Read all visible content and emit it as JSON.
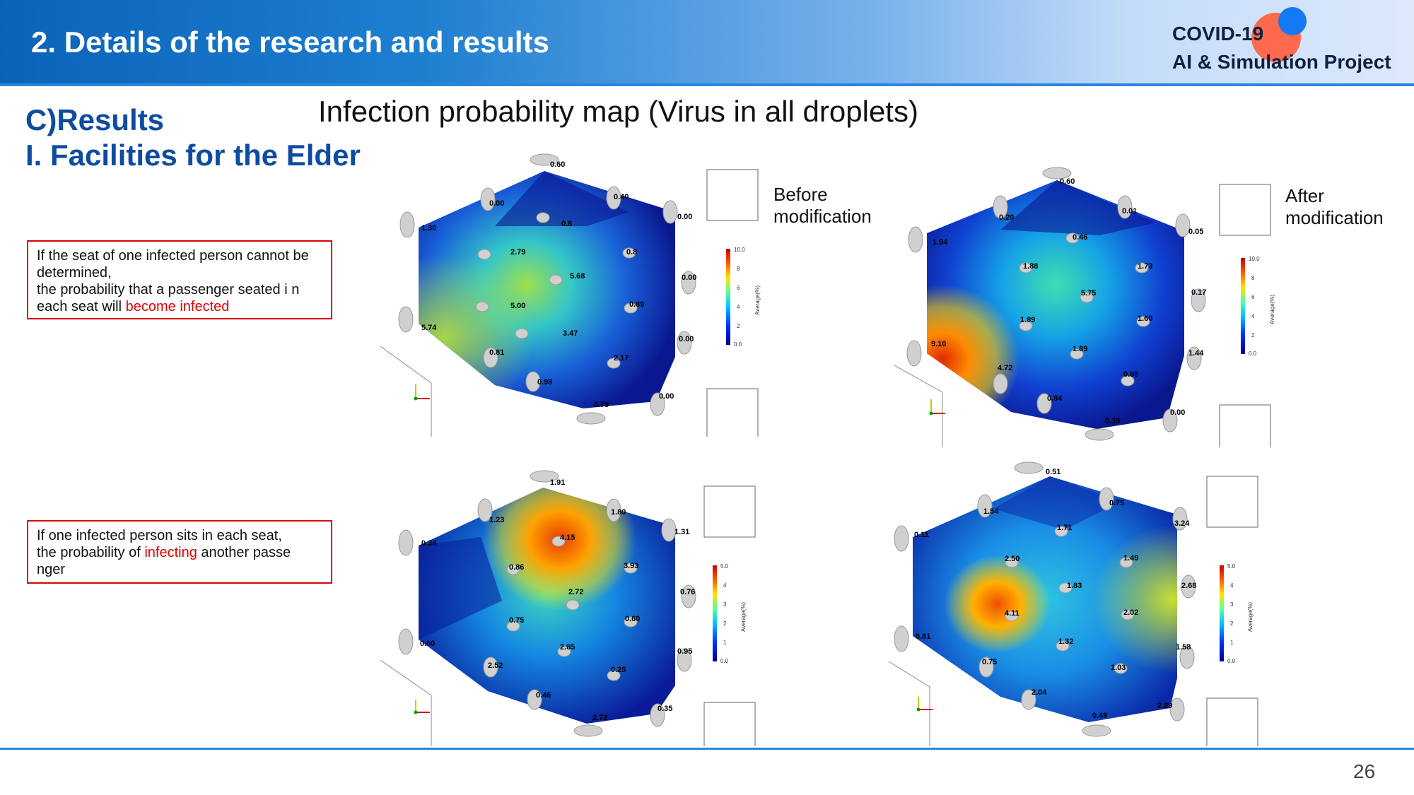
{
  "header": {
    "title": "2. Details of the research and results",
    "logo_line1": "COVID-19",
    "logo_line2": "AI & Simulation Project",
    "logo_colors": [
      "#ff6a4f",
      "#1479f5"
    ]
  },
  "section": {
    "heading_a": "C)Results",
    "heading_b": "I. Facilities for the Elder",
    "map_title": "Infection probability map (Virus in all droplets)"
  },
  "notes": {
    "top_part1": "If the seat of one infected person cannot be determined,",
    "top_part2": "the probability that a passenger seated i n each seat will ",
    "top_highlight": "become infected",
    "bottom_part1": "If one infected person sits in each seat,",
    "bottom_part2": "the probability of ",
    "bottom_highlight": "infecting",
    "bottom_part3": " another passe nger"
  },
  "captions": {
    "before_line1": "Before",
    "before_line2": "modification",
    "after_line1": "After",
    "after_line2": "modification"
  },
  "legend": {
    "axis_label": "Average(%)",
    "ticks_top": [
      "10.0",
      "8",
      "6",
      "4",
      "2",
      "0.0"
    ],
    "ticks_bottom": [
      "5.0",
      "4",
      "3",
      "2",
      "1",
      "0.0"
    ]
  },
  "maps": {
    "top_before": [
      "0.60",
      "0.00",
      "0.40",
      "0.00",
      "1.30",
      "0.8",
      "2.79",
      "0.8",
      "5.68",
      "0.00",
      "5.00",
      "0.89",
      "5.74",
      "3.47",
      "0.00",
      "0.81",
      "2.17",
      "0.98",
      "0.00",
      "0.79"
    ],
    "top_after": [
      "0.60",
      "0.20",
      "0.01",
      "0.05",
      "1.94",
      "0.46",
      "1.88",
      "1.73",
      "5.75",
      "0.17",
      "1.89",
      "1.60",
      "9.10",
      "1.89",
      "1.44",
      "4.72",
      "0.65",
      "0.84",
      "0.00",
      "0.39"
    ],
    "bottom_before": [
      "1.91",
      "1.23",
      "1.80",
      "1.31",
      "0.34",
      "4.15",
      "0.86",
      "3.93",
      "2.72",
      "0.76",
      "0.75",
      "0.60",
      "0.00",
      "2.85",
      "0.95",
      "2.52",
      "0.25",
      "0.46",
      "0.35",
      "2.72"
    ],
    "bottom_after": [
      "0.51",
      "1.54",
      "0.75",
      "3.24",
      "0.11",
      "1.71",
      "2.50",
      "1.49",
      "1.83",
      "2.68",
      "4.11",
      "2.02",
      "0.81",
      "1.32",
      "1.58",
      "0.75",
      "1.03",
      "2.04",
      "2.89",
      "0.49"
    ]
  },
  "page_number": "26"
}
